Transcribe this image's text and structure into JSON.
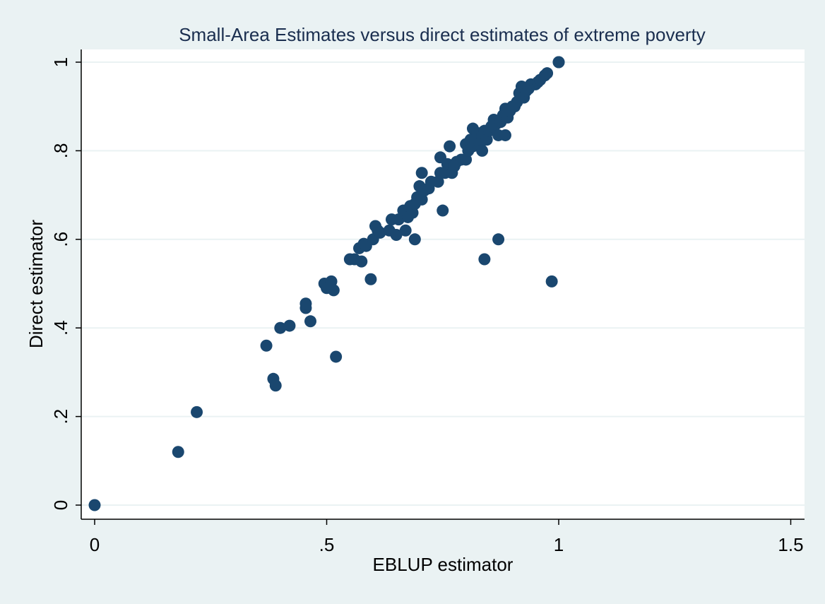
{
  "chart_data": {
    "type": "scatter",
    "title": "Small-Area Estimates versus direct estimates of extreme poverty",
    "xlabel": "EBLUP estimator",
    "ylabel": "Direct estimator",
    "xlim": [
      0,
      1.5
    ],
    "ylim": [
      0,
      1
    ],
    "xticks": [
      {
        "value": 0,
        "label": "0"
      },
      {
        "value": 0.5,
        "label": ".5"
      },
      {
        "value": 1,
        "label": "1"
      },
      {
        "value": 1.5,
        "label": "1.5"
      }
    ],
    "yticks": [
      {
        "value": 0,
        "label": "0"
      },
      {
        "value": 0.2,
        "label": ".2"
      },
      {
        "value": 0.4,
        "label": ".4"
      },
      {
        "value": 0.6,
        "label": ".6"
      },
      {
        "value": 0.8,
        "label": ".8"
      },
      {
        "value": 1,
        "label": "1"
      }
    ],
    "grid": "horizontal",
    "colors": {
      "marker": "#1a476f",
      "outer_background": "#eaf2f3",
      "plot_background": "#ffffff",
      "grid": "#eaf2f3",
      "title": "#1a2e4f",
      "text": "#000000"
    },
    "points": [
      [
        0,
        0
      ],
      [
        0.18,
        0.12
      ],
      [
        0.22,
        0.21
      ],
      [
        0.37,
        0.36
      ],
      [
        0.385,
        0.285
      ],
      [
        0.39,
        0.27
      ],
      [
        0.4,
        0.4
      ],
      [
        0.42,
        0.405
      ],
      [
        0.455,
        0.445
      ],
      [
        0.455,
        0.455
      ],
      [
        0.465,
        0.415
      ],
      [
        0.495,
        0.5
      ],
      [
        0.5,
        0.49
      ],
      [
        0.51,
        0.505
      ],
      [
        0.515,
        0.485
      ],
      [
        0.52,
        0.335
      ],
      [
        0.55,
        0.555
      ],
      [
        0.56,
        0.555
      ],
      [
        0.57,
        0.58
      ],
      [
        0.575,
        0.55
      ],
      [
        0.58,
        0.59
      ],
      [
        0.585,
        0.585
      ],
      [
        0.595,
        0.51
      ],
      [
        0.6,
        0.6
      ],
      [
        0.605,
        0.63
      ],
      [
        0.61,
        0.62
      ],
      [
        0.615,
        0.615
      ],
      [
        0.635,
        0.62
      ],
      [
        0.64,
        0.645
      ],
      [
        0.65,
        0.61
      ],
      [
        0.655,
        0.645
      ],
      [
        0.665,
        0.665
      ],
      [
        0.67,
        0.62
      ],
      [
        0.675,
        0.65
      ],
      [
        0.68,
        0.675
      ],
      [
        0.685,
        0.66
      ],
      [
        0.69,
        0.6
      ],
      [
        0.69,
        0.68
      ],
      [
        0.695,
        0.695
      ],
      [
        0.7,
        0.72
      ],
      [
        0.705,
        0.75
      ],
      [
        0.705,
        0.69
      ],
      [
        0.71,
        0.71
      ],
      [
        0.72,
        0.715
      ],
      [
        0.725,
        0.73
      ],
      [
        0.74,
        0.73
      ],
      [
        0.745,
        0.75
      ],
      [
        0.745,
        0.785
      ],
      [
        0.75,
        0.665
      ],
      [
        0.755,
        0.75
      ],
      [
        0.76,
        0.77
      ],
      [
        0.765,
        0.81
      ],
      [
        0.77,
        0.75
      ],
      [
        0.775,
        0.765
      ],
      [
        0.78,
        0.775
      ],
      [
        0.79,
        0.78
      ],
      [
        0.8,
        0.78
      ],
      [
        0.8,
        0.815
      ],
      [
        0.805,
        0.8
      ],
      [
        0.81,
        0.825
      ],
      [
        0.815,
        0.85
      ],
      [
        0.815,
        0.81
      ],
      [
        0.82,
        0.82
      ],
      [
        0.825,
        0.84
      ],
      [
        0.83,
        0.815
      ],
      [
        0.835,
        0.8
      ],
      [
        0.835,
        0.835
      ],
      [
        0.84,
        0.555
      ],
      [
        0.84,
        0.845
      ],
      [
        0.845,
        0.825
      ],
      [
        0.85,
        0.845
      ],
      [
        0.855,
        0.855
      ],
      [
        0.86,
        0.87
      ],
      [
        0.865,
        0.86
      ],
      [
        0.87,
        0.835
      ],
      [
        0.87,
        0.6
      ],
      [
        0.875,
        0.865
      ],
      [
        0.88,
        0.88
      ],
      [
        0.885,
        0.835
      ],
      [
        0.885,
        0.895
      ],
      [
        0.89,
        0.875
      ],
      [
        0.895,
        0.89
      ],
      [
        0.9,
        0.9
      ],
      [
        0.905,
        0.9
      ],
      [
        0.91,
        0.91
      ],
      [
        0.915,
        0.93
      ],
      [
        0.92,
        0.945
      ],
      [
        0.925,
        0.92
      ],
      [
        0.93,
        0.935
      ],
      [
        0.935,
        0.94
      ],
      [
        0.94,
        0.95
      ],
      [
        0.95,
        0.95
      ],
      [
        0.955,
        0.955
      ],
      [
        0.96,
        0.96
      ],
      [
        0.97,
        0.97
      ],
      [
        0.975,
        0.975
      ],
      [
        0.985,
        0.505
      ],
      [
        1,
        1
      ],
      [
        1,
        1
      ]
    ]
  }
}
